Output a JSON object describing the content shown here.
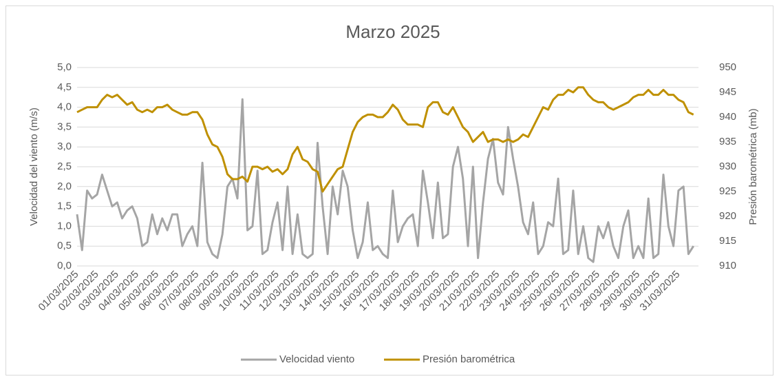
{
  "chart_data": {
    "type": "line",
    "title": "Marzo 2025",
    "y_label": "Velocidad del viento (m/s)",
    "y2_label": "Presión barométrica (mb)",
    "categories": [
      "01/03/2025",
      null,
      null,
      null,
      "02/03/2025",
      null,
      null,
      null,
      "03/03/2025",
      null,
      null,
      null,
      "04/03/2025",
      null,
      null,
      null,
      "05/03/2025",
      null,
      null,
      null,
      "06/03/2025",
      null,
      null,
      null,
      "07/03/2025",
      null,
      null,
      null,
      "08/03/2025",
      null,
      null,
      null,
      "09/03/2025",
      null,
      null,
      null,
      "10/03/2025",
      null,
      null,
      null,
      "11/03/2025",
      null,
      null,
      null,
      "12/03/2025",
      null,
      null,
      null,
      "13/03/2025",
      null,
      null,
      null,
      "14/03/2025",
      null,
      null,
      null,
      "15/03/2025",
      null,
      null,
      null,
      "16/03/2025",
      null,
      null,
      null,
      "17/03/2025",
      null,
      null,
      null,
      "18/03/2025",
      null,
      null,
      null,
      "19/03/2025",
      null,
      null,
      null,
      "20/03/2025",
      null,
      null,
      null,
      "21/03/2025",
      null,
      null,
      null,
      "22/03/2025",
      null,
      null,
      null,
      "23/03/2025",
      null,
      null,
      null,
      "24/03/2025",
      null,
      null,
      null,
      "25/03/2025",
      null,
      null,
      null,
      "26/03/2025",
      null,
      null,
      null,
      "27/03/2025",
      null,
      null,
      null,
      "28/03/2025",
      null,
      null,
      null,
      "29/03/2025",
      null,
      null,
      null,
      "30/03/2025",
      null,
      null,
      null,
      "31/03/2025",
      null,
      null,
      null
    ],
    "series": [
      {
        "name": "Velocidad viento",
        "color": "#a5a5a5",
        "values": [
          1.3,
          0.4,
          1.9,
          1.7,
          1.8,
          2.3,
          1.9,
          1.5,
          1.6,
          1.2,
          1.4,
          1.5,
          1.2,
          0.5,
          0.6,
          1.3,
          0.8,
          1.2,
          0.9,
          1.3,
          1.3,
          0.5,
          0.8,
          1.0,
          0.5,
          2.6,
          0.6,
          0.3,
          0.2,
          0.8,
          2.0,
          2.2,
          1.7,
          4.2,
          0.9,
          1.0,
          2.4,
          0.3,
          0.4,
          1.1,
          1.6,
          0.4,
          2.0,
          0.3,
          1.3,
          0.3,
          0.2,
          0.3,
          3.1,
          1.5,
          0.3,
          2.0,
          1.3,
          2.4,
          2.0,
          0.9,
          0.2,
          0.6,
          1.6,
          0.4,
          0.5,
          0.3,
          0.2,
          1.9,
          0.6,
          1.0,
          1.2,
          1.3,
          0.5,
          2.4,
          1.6,
          0.7,
          2.1,
          0.7,
          0.8,
          2.5,
          3.0,
          2.2,
          0.5,
          2.5,
          0.2,
          1.6,
          2.7,
          3.2,
          2.1,
          1.8,
          3.5,
          2.7,
          2.0,
          1.1,
          0.8,
          1.6,
          0.3,
          0.5,
          1.1,
          1.0,
          2.2,
          0.3,
          0.4,
          1.9,
          0.3,
          1.0,
          0.2,
          0.1,
          1.0,
          0.7,
          1.1,
          0.5,
          0.2,
          1.0,
          1.4,
          0.2,
          0.5,
          0.2,
          1.7,
          0.2,
          0.3,
          2.3,
          1.0,
          0.5,
          1.9,
          2.0,
          0.3,
          0.5
        ]
      },
      {
        "name": "Presión barométrica",
        "color": "#bf9000",
        "axis": "y2",
        "values": [
          941,
          941.5,
          942,
          942,
          942,
          943.5,
          944.5,
          944,
          944.5,
          943.5,
          942.5,
          943,
          941.5,
          941,
          941.5,
          941,
          942,
          942,
          942.5,
          941.5,
          941,
          940.5,
          940.5,
          941,
          941,
          939.5,
          936.5,
          934.5,
          934,
          932,
          928.5,
          927.5,
          927.5,
          928,
          927,
          930,
          930,
          929.5,
          930,
          929,
          929.5,
          928.5,
          929.5,
          932.5,
          934,
          931.5,
          931,
          929.5,
          929,
          925,
          926.5,
          928,
          929.5,
          930,
          933.5,
          937,
          939,
          940,
          940.5,
          940.5,
          940,
          940,
          941,
          942.5,
          941.5,
          939.5,
          938.5,
          938.5,
          938.5,
          938,
          942,
          943,
          943,
          941,
          940.5,
          942,
          940,
          938,
          937,
          935,
          936,
          937,
          935,
          935.5,
          935.5,
          935,
          935.5,
          935,
          935.5,
          936.5,
          936,
          938,
          940,
          942,
          941.5,
          943.5,
          944.5,
          944.5,
          945.5,
          945,
          946,
          946,
          944.5,
          943.5,
          943,
          943,
          942,
          941.5,
          942,
          942.5,
          943,
          944,
          944.5,
          944.5,
          945.5,
          944.5,
          944.5,
          945.5,
          944.5,
          944.5,
          943.5,
          943,
          941,
          940.5
        ]
      }
    ],
    "ylim": [
      0,
      5
    ],
    "yticks": [
      {
        "value": 0,
        "label": "0,0"
      },
      {
        "value": 0.5,
        "label": "0,5"
      },
      {
        "value": 1,
        "label": "1,0"
      },
      {
        "value": 1.5,
        "label": "1,5"
      },
      {
        "value": 2,
        "label": "2,0"
      },
      {
        "value": 2.5,
        "label": "2,5"
      },
      {
        "value": 3,
        "label": "3,0"
      },
      {
        "value": 3.5,
        "label": "3,5"
      },
      {
        "value": 4,
        "label": "4,0"
      },
      {
        "value": 4.5,
        "label": "4,5"
      },
      {
        "value": 5,
        "label": "5,0"
      }
    ],
    "y2lim": [
      910,
      950
    ],
    "y2ticks": [
      910,
      915,
      920,
      925,
      930,
      935,
      940,
      945,
      950
    ],
    "grid": true,
    "legend": "bottom"
  }
}
